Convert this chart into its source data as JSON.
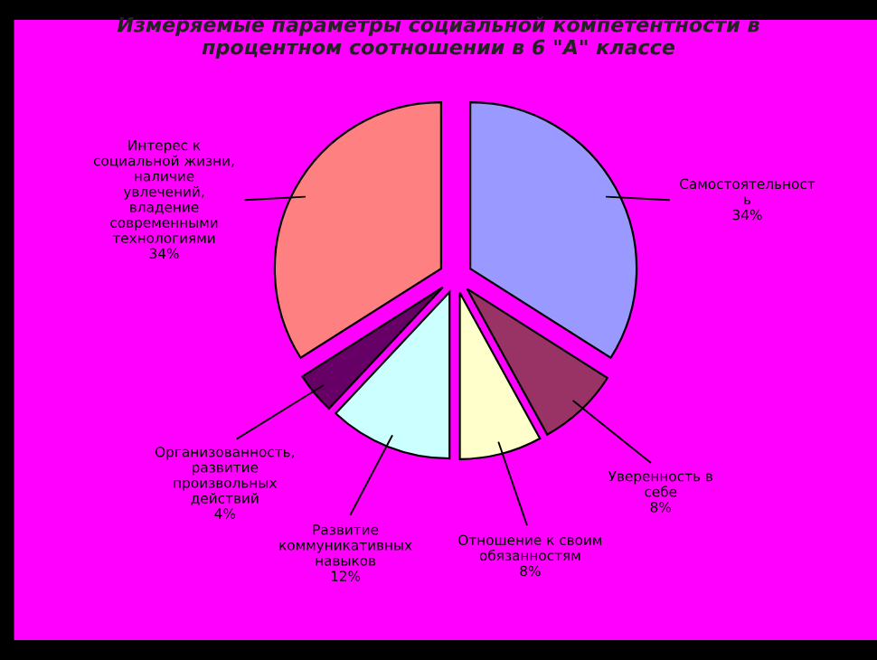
{
  "chart_data": {
    "type": "pie",
    "title": "Измеряемые параметры социальной компетентности в\nпроцентном соотношении в 6 \"А\" классе",
    "categories": [
      "Самостоятельност\nь",
      "Уверенность в\nсебе",
      "Отношение к своим\nобязанностям",
      "Развитие\nкоммуникативных\nнавыков",
      "Организованность,\nразвитие\nпроизвольных\nдействий",
      "Интерес к\nсоциальной жизни,\nналичие\nувлечений,\nвладение\nсовременными\nтехнологиями"
    ],
    "values": [
      34,
      8,
      8,
      12,
      4,
      34
    ],
    "value_labels": [
      "34%",
      "8%",
      "8%",
      "12%",
      "4%",
      "34%"
    ],
    "colors": [
      "#9999ff",
      "#993366",
      "#ffffcc",
      "#ccffff",
      "#660066",
      "#ff8080"
    ],
    "legend": false
  }
}
